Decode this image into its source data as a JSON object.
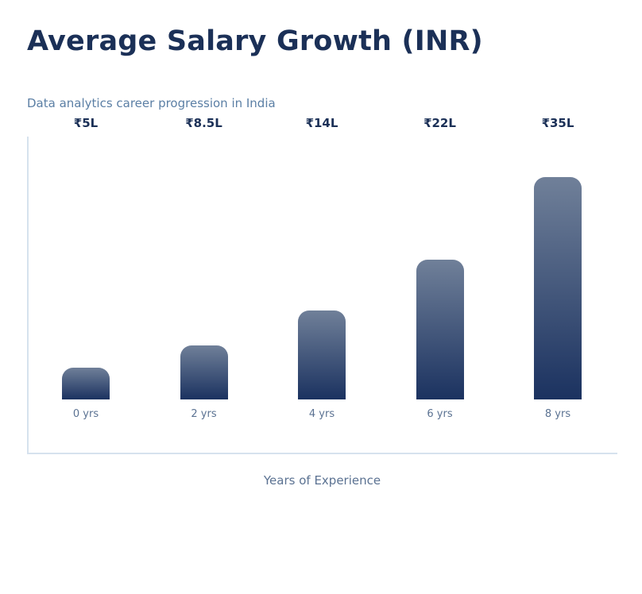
{
  "chart_data": {
    "type": "bar",
    "title": "Average Salary Growth (INR)",
    "subtitle": "Data analytics career progression in India",
    "xlabel": "Years of Experience",
    "ylabel": "",
    "categories": [
      "0 yrs",
      "2 yrs",
      "4 yrs",
      "6 yrs",
      "8 yrs"
    ],
    "values": [
      5,
      8.5,
      14,
      22,
      35
    ],
    "value_labels": [
      "₹5L",
      "₹8.5L",
      "₹14L",
      "₹22L",
      "₹35L"
    ],
    "unit": "Lakh INR",
    "ylim": [
      0,
      40
    ],
    "grid": false,
    "colors": {
      "bar_top": "#708099",
      "bar_bottom": "#1b3260",
      "title": "#1b3057"
    }
  }
}
